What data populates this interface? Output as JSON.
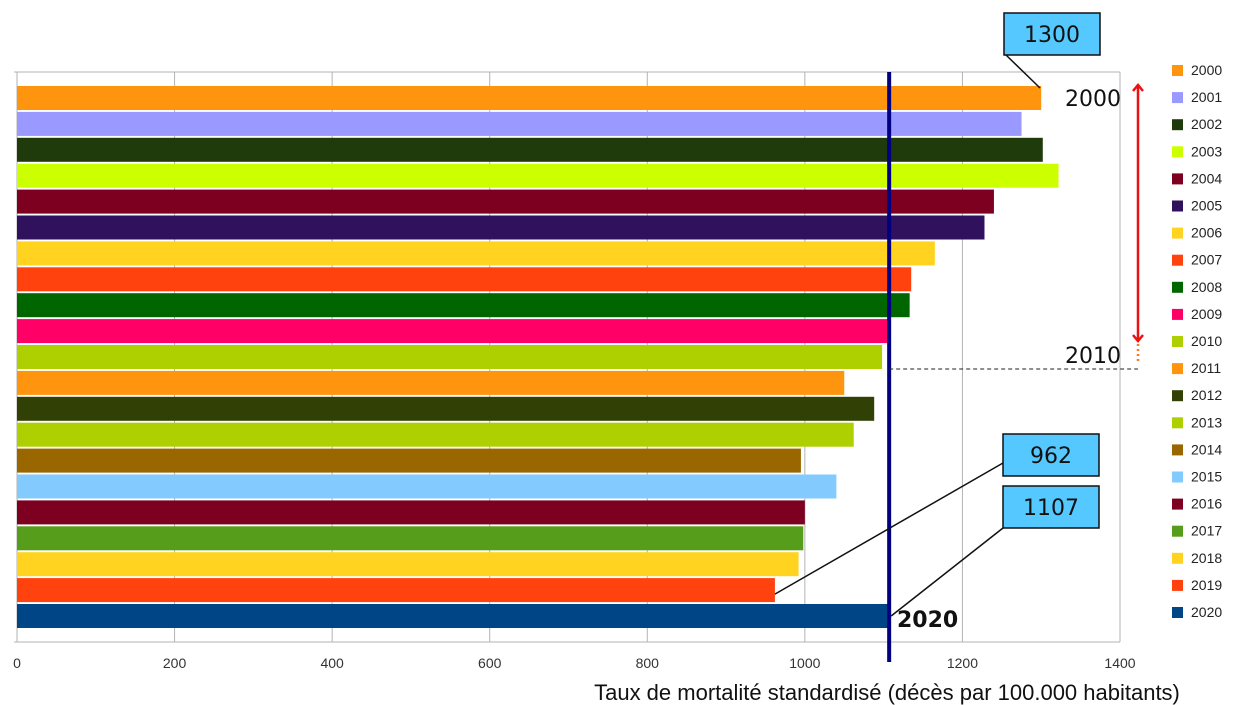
{
  "chart_data": {
    "type": "bar",
    "orientation": "horizontal",
    "categories": [
      "2000",
      "2001",
      "2002",
      "2003",
      "2004",
      "2005",
      "2006",
      "2007",
      "2008",
      "2009",
      "2010",
      "2011",
      "2012",
      "2013",
      "2014",
      "2015",
      "2016",
      "2017",
      "2018",
      "2019",
      "2020"
    ],
    "values": [
      1300,
      1275,
      1302,
      1322,
      1240,
      1228,
      1165,
      1135,
      1133,
      1107,
      1098,
      1050,
      1088,
      1062,
      995,
      1040,
      1000,
      998,
      992,
      962,
      1107
    ],
    "colors": [
      "#ff950e",
      "#9999ff",
      "#1f3b0b",
      "#ccff00",
      "#7e0021",
      "#30115e",
      "#ffd320",
      "#ff420e",
      "#006600",
      "#ff0066",
      "#aecf00",
      "#ff950e",
      "#314004",
      "#aecf00",
      "#996600",
      "#83caff",
      "#7e0021",
      "#579d1c",
      "#ffd320",
      "#ff420e",
      "#004586"
    ],
    "legend": [
      "2000",
      "2001",
      "2002",
      "2003",
      "2004",
      "2005",
      "2006",
      "2007",
      "2008",
      "2009",
      "2010",
      "2011",
      "2012",
      "2013",
      "2014",
      "2015",
      "2016",
      "2017",
      "2018",
      "2019",
      "2020"
    ],
    "legend_position": "right",
    "xlim": [
      0,
      1400
    ],
    "xticks": [
      0,
      200,
      400,
      600,
      800,
      1000,
      1200,
      1400
    ],
    "xlabel": "Taux de mortalité standardisé (décès par 100.000 habitants)",
    "grid": "vertical",
    "reference_line_value": 1107,
    "annotations": {
      "callout_top": "1300",
      "callout_mid": "962",
      "callout_low": "1107",
      "range_start": "2000",
      "range_end": "2010",
      "bar_label_2020": "2020"
    }
  },
  "colors": {
    "reference_line": "#000080",
    "arrow": "#ee1111",
    "callout_fill": "#55c8ff",
    "grid": "#b3b3b3"
  }
}
